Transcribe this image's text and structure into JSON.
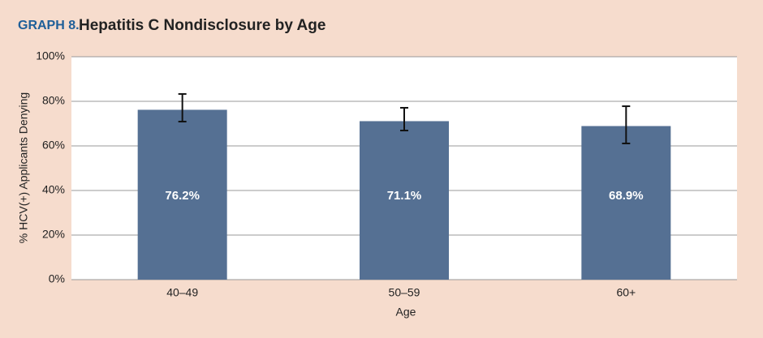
{
  "chart_data": {
    "type": "bar",
    "label": "GRAPH 8.",
    "title": "Hepatitis C Nondisclosure by Age",
    "x_label": "Age",
    "y_label": "% HCV(+) Applicants Denying",
    "categories": [
      "40–49",
      "50–59",
      "60+"
    ],
    "values": [
      76.2,
      71.1,
      68.9
    ],
    "value_labels": [
      "76.2%",
      "71.1%",
      "68.9%"
    ],
    "error_bars": [
      {
        "low": 70.9,
        "high": 83.3
      },
      {
        "low": 66.9,
        "high": 77.1
      },
      {
        "low": 61.1,
        "high": 77.8
      }
    ],
    "color": "#557093",
    "ylim": [
      0,
      100
    ],
    "yticks": [
      {
        "value": 0,
        "label": "0%"
      },
      {
        "value": 20,
        "label": "20%"
      },
      {
        "value": 40,
        "label": "40%"
      },
      {
        "value": 60,
        "label": "60%"
      },
      {
        "value": 80,
        "label": "80%"
      },
      {
        "value": 100,
        "label": "100%"
      }
    ],
    "grid": true
  }
}
